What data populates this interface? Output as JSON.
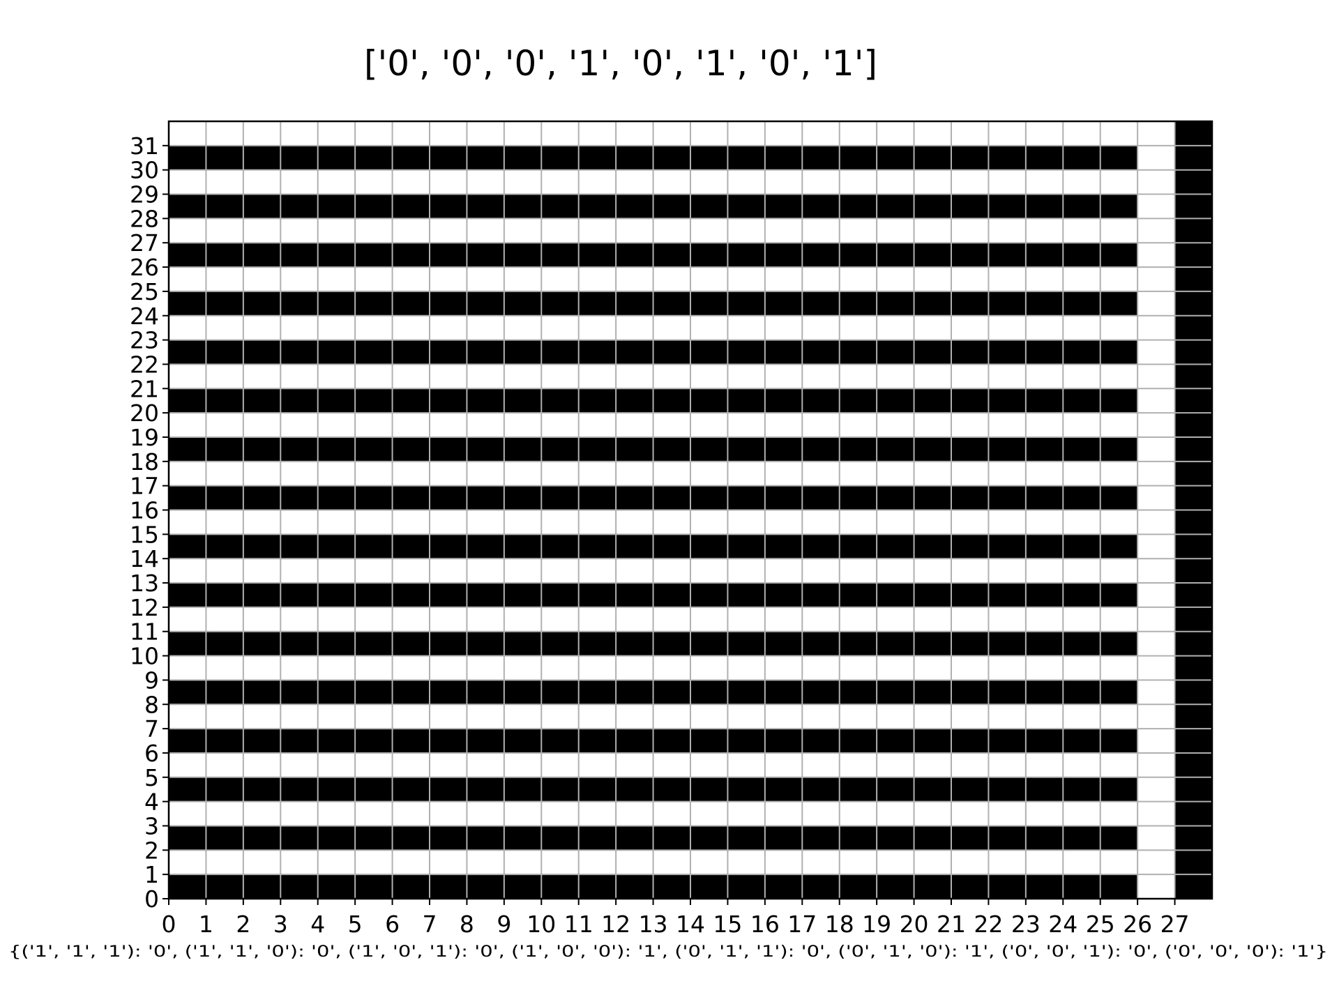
{
  "chart_data": {
    "type": "heatmap",
    "title": "['0', '0', '0', '1', '0', '1', '0', '1']",
    "caption": "{('1', '1', '1'): '0', ('1', '1', '0'): '0', ('1', '0', '1'): '0', ('1', '0', '0'): '1', ('0', '1', '1'): '0', ('0', '1', '0'): '1', ('0', '0', '1'): '0', ('0', '0', '0'): '1'}",
    "xlabel": "",
    "ylabel": "",
    "x_ticks": [
      0,
      1,
      2,
      3,
      4,
      5,
      6,
      7,
      8,
      9,
      10,
      11,
      12,
      13,
      14,
      15,
      16,
      17,
      18,
      19,
      20,
      21,
      22,
      23,
      24,
      25,
      26,
      27
    ],
    "y_ticks": [
      0,
      1,
      2,
      3,
      4,
      5,
      6,
      7,
      8,
      9,
      10,
      11,
      12,
      13,
      14,
      15,
      16,
      17,
      18,
      19,
      20,
      21,
      22,
      23,
      24,
      25,
      26,
      27,
      28,
      29,
      30,
      31
    ],
    "n_cols": 28,
    "n_rows": 32,
    "grid": true,
    "colors": {
      "on": "#000000",
      "off": "#ffffff",
      "grid": "#b0b0b0"
    },
    "cell_rule": "row r (0 = bottom): columns 0-25 are 1 when r is even, 0 when r is odd; column 26 is always 0; column 27 is always 1",
    "rows": [
      [
        1,
        1,
        1,
        1,
        1,
        1,
        1,
        1,
        1,
        1,
        1,
        1,
        1,
        1,
        1,
        1,
        1,
        1,
        1,
        1,
        1,
        1,
        1,
        1,
        1,
        1,
        0,
        1
      ],
      [
        0,
        0,
        0,
        0,
        0,
        0,
        0,
        0,
        0,
        0,
        0,
        0,
        0,
        0,
        0,
        0,
        0,
        0,
        0,
        0,
        0,
        0,
        0,
        0,
        0,
        0,
        0,
        1
      ],
      [
        1,
        1,
        1,
        1,
        1,
        1,
        1,
        1,
        1,
        1,
        1,
        1,
        1,
        1,
        1,
        1,
        1,
        1,
        1,
        1,
        1,
        1,
        1,
        1,
        1,
        1,
        0,
        1
      ],
      [
        0,
        0,
        0,
        0,
        0,
        0,
        0,
        0,
        0,
        0,
        0,
        0,
        0,
        0,
        0,
        0,
        0,
        0,
        0,
        0,
        0,
        0,
        0,
        0,
        0,
        0,
        0,
        1
      ],
      [
        1,
        1,
        1,
        1,
        1,
        1,
        1,
        1,
        1,
        1,
        1,
        1,
        1,
        1,
        1,
        1,
        1,
        1,
        1,
        1,
        1,
        1,
        1,
        1,
        1,
        1,
        0,
        1
      ],
      [
        0,
        0,
        0,
        0,
        0,
        0,
        0,
        0,
        0,
        0,
        0,
        0,
        0,
        0,
        0,
        0,
        0,
        0,
        0,
        0,
        0,
        0,
        0,
        0,
        0,
        0,
        0,
        1
      ],
      [
        1,
        1,
        1,
        1,
        1,
        1,
        1,
        1,
        1,
        1,
        1,
        1,
        1,
        1,
        1,
        1,
        1,
        1,
        1,
        1,
        1,
        1,
        1,
        1,
        1,
        1,
        0,
        1
      ],
      [
        0,
        0,
        0,
        0,
        0,
        0,
        0,
        0,
        0,
        0,
        0,
        0,
        0,
        0,
        0,
        0,
        0,
        0,
        0,
        0,
        0,
        0,
        0,
        0,
        0,
        0,
        0,
        1
      ],
      [
        1,
        1,
        1,
        1,
        1,
        1,
        1,
        1,
        1,
        1,
        1,
        1,
        1,
        1,
        1,
        1,
        1,
        1,
        1,
        1,
        1,
        1,
        1,
        1,
        1,
        1,
        0,
        1
      ],
      [
        0,
        0,
        0,
        0,
        0,
        0,
        0,
        0,
        0,
        0,
        0,
        0,
        0,
        0,
        0,
        0,
        0,
        0,
        0,
        0,
        0,
        0,
        0,
        0,
        0,
        0,
        0,
        1
      ],
      [
        1,
        1,
        1,
        1,
        1,
        1,
        1,
        1,
        1,
        1,
        1,
        1,
        1,
        1,
        1,
        1,
        1,
        1,
        1,
        1,
        1,
        1,
        1,
        1,
        1,
        1,
        0,
        1
      ],
      [
        0,
        0,
        0,
        0,
        0,
        0,
        0,
        0,
        0,
        0,
        0,
        0,
        0,
        0,
        0,
        0,
        0,
        0,
        0,
        0,
        0,
        0,
        0,
        0,
        0,
        0,
        0,
        1
      ],
      [
        1,
        1,
        1,
        1,
        1,
        1,
        1,
        1,
        1,
        1,
        1,
        1,
        1,
        1,
        1,
        1,
        1,
        1,
        1,
        1,
        1,
        1,
        1,
        1,
        1,
        1,
        0,
        1
      ],
      [
        0,
        0,
        0,
        0,
        0,
        0,
        0,
        0,
        0,
        0,
        0,
        0,
        0,
        0,
        0,
        0,
        0,
        0,
        0,
        0,
        0,
        0,
        0,
        0,
        0,
        0,
        0,
        1
      ],
      [
        1,
        1,
        1,
        1,
        1,
        1,
        1,
        1,
        1,
        1,
        1,
        1,
        1,
        1,
        1,
        1,
        1,
        1,
        1,
        1,
        1,
        1,
        1,
        1,
        1,
        1,
        0,
        1
      ],
      [
        0,
        0,
        0,
        0,
        0,
        0,
        0,
        0,
        0,
        0,
        0,
        0,
        0,
        0,
        0,
        0,
        0,
        0,
        0,
        0,
        0,
        0,
        0,
        0,
        0,
        0,
        0,
        1
      ],
      [
        1,
        1,
        1,
        1,
        1,
        1,
        1,
        1,
        1,
        1,
        1,
        1,
        1,
        1,
        1,
        1,
        1,
        1,
        1,
        1,
        1,
        1,
        1,
        1,
        1,
        1,
        0,
        1
      ],
      [
        0,
        0,
        0,
        0,
        0,
        0,
        0,
        0,
        0,
        0,
        0,
        0,
        0,
        0,
        0,
        0,
        0,
        0,
        0,
        0,
        0,
        0,
        0,
        0,
        0,
        0,
        0,
        1
      ],
      [
        1,
        1,
        1,
        1,
        1,
        1,
        1,
        1,
        1,
        1,
        1,
        1,
        1,
        1,
        1,
        1,
        1,
        1,
        1,
        1,
        1,
        1,
        1,
        1,
        1,
        1,
        0,
        1
      ],
      [
        0,
        0,
        0,
        0,
        0,
        0,
        0,
        0,
        0,
        0,
        0,
        0,
        0,
        0,
        0,
        0,
        0,
        0,
        0,
        0,
        0,
        0,
        0,
        0,
        0,
        0,
        0,
        1
      ],
      [
        1,
        1,
        1,
        1,
        1,
        1,
        1,
        1,
        1,
        1,
        1,
        1,
        1,
        1,
        1,
        1,
        1,
        1,
        1,
        1,
        1,
        1,
        1,
        1,
        1,
        1,
        0,
        1
      ],
      [
        0,
        0,
        0,
        0,
        0,
        0,
        0,
        0,
        0,
        0,
        0,
        0,
        0,
        0,
        0,
        0,
        0,
        0,
        0,
        0,
        0,
        0,
        0,
        0,
        0,
        0,
        0,
        1
      ],
      [
        1,
        1,
        1,
        1,
        1,
        1,
        1,
        1,
        1,
        1,
        1,
        1,
        1,
        1,
        1,
        1,
        1,
        1,
        1,
        1,
        1,
        1,
        1,
        1,
        1,
        1,
        0,
        1
      ],
      [
        0,
        0,
        0,
        0,
        0,
        0,
        0,
        0,
        0,
        0,
        0,
        0,
        0,
        0,
        0,
        0,
        0,
        0,
        0,
        0,
        0,
        0,
        0,
        0,
        0,
        0,
        0,
        1
      ],
      [
        1,
        1,
        1,
        1,
        1,
        1,
        1,
        1,
        1,
        1,
        1,
        1,
        1,
        1,
        1,
        1,
        1,
        1,
        1,
        1,
        1,
        1,
        1,
        1,
        1,
        1,
        0,
        1
      ],
      [
        0,
        0,
        0,
        0,
        0,
        0,
        0,
        0,
        0,
        0,
        0,
        0,
        0,
        0,
        0,
        0,
        0,
        0,
        0,
        0,
        0,
        0,
        0,
        0,
        0,
        0,
        0,
        1
      ],
      [
        1,
        1,
        1,
        1,
        1,
        1,
        1,
        1,
        1,
        1,
        1,
        1,
        1,
        1,
        1,
        1,
        1,
        1,
        1,
        1,
        1,
        1,
        1,
        1,
        1,
        1,
        0,
        1
      ],
      [
        0,
        0,
        0,
        0,
        0,
        0,
        0,
        0,
        0,
        0,
        0,
        0,
        0,
        0,
        0,
        0,
        0,
        0,
        0,
        0,
        0,
        0,
        0,
        0,
        0,
        0,
        0,
        1
      ],
      [
        1,
        1,
        1,
        1,
        1,
        1,
        1,
        1,
        1,
        1,
        1,
        1,
        1,
        1,
        1,
        1,
        1,
        1,
        1,
        1,
        1,
        1,
        1,
        1,
        1,
        1,
        0,
        1
      ],
      [
        0,
        0,
        0,
        0,
        0,
        0,
        0,
        0,
        0,
        0,
        0,
        0,
        0,
        0,
        0,
        0,
        0,
        0,
        0,
        0,
        0,
        0,
        0,
        0,
        0,
        0,
        0,
        1
      ],
      [
        1,
        1,
        1,
        1,
        1,
        1,
        1,
        1,
        1,
        1,
        1,
        1,
        1,
        1,
        1,
        1,
        1,
        1,
        1,
        1,
        1,
        1,
        1,
        1,
        1,
        1,
        0,
        1
      ],
      [
        0,
        0,
        0,
        0,
        0,
        0,
        0,
        0,
        0,
        0,
        0,
        0,
        0,
        0,
        0,
        0,
        0,
        0,
        0,
        0,
        0,
        0,
        0,
        0,
        0,
        0,
        0,
        1
      ]
    ]
  }
}
